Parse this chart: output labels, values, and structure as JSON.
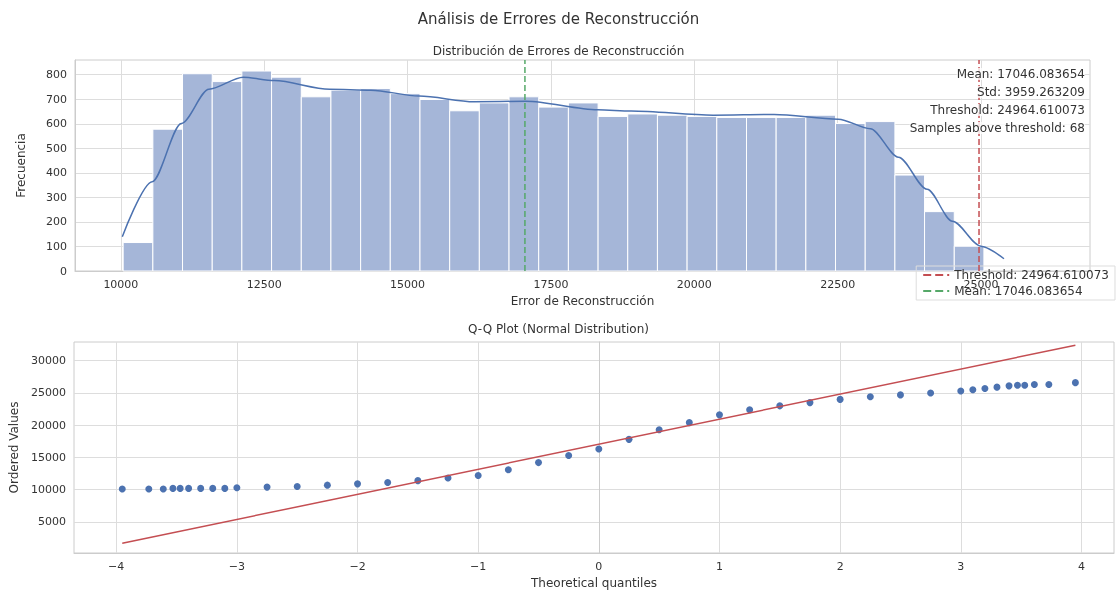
{
  "chart_data": [
    {
      "type": "histogram",
      "title": "Análisis de Errores de Reconstrucción",
      "subtitle": "Distribución de Errores de Reconstrucción",
      "xlabel": "Error de Reconstrucción",
      "ylabel": "Frecuencia",
      "series": [
        {
          "color": "#a5b6d8",
          "bins": [
            10040,
            10558,
            11075,
            11593,
            12110,
            12628,
            13146,
            13663,
            14181,
            14698,
            15216,
            15734,
            16251,
            16769,
            17286,
            17804,
            18322,
            18839,
            19357,
            19874,
            20392,
            20910,
            21427,
            21945,
            22462,
            22980,
            23498,
            24015,
            24533,
            25050
          ],
          "values": [
            116,
            578,
            804,
            772,
            815,
            790,
            710,
            737,
            744,
            723,
            699,
            653,
            685,
            710,
            668,
            685,
            630,
            640,
            635,
            630,
            626,
            626,
            626,
            635,
            601,
            609,
            391,
            242,
            101
          ]
        },
        {
          "type": "line",
          "color": "#4c72b0",
          "x": [
            10025,
            10545,
            11055,
            11535,
            12135,
            12675,
            13640,
            14360,
            15200,
            16160,
            17060,
            18320,
            18900,
            20330,
            21390,
            22510,
            23070,
            23560,
            24060,
            24500,
            25000,
            25400
          ],
          "values": [
            140,
            364,
            601,
            741,
            790,
            776,
            741,
            737,
            713,
            690,
            692,
            657,
            652,
            635,
            638,
            619,
            580,
            464,
            333,
            203,
            101,
            50
          ]
        }
      ],
      "xlim": [
        9200,
        26900
      ],
      "ylim": [
        0,
        860
      ],
      "xticks": [
        10000,
        12500,
        15000,
        17500,
        20000,
        22500,
        25000
      ],
      "yticks": [
        0,
        100,
        200,
        300,
        400,
        500,
        600,
        700,
        800
      ],
      "grid": true,
      "legend": "bottom right",
      "ref_lines": [
        {
          "axis": "x",
          "value": 24964.610073,
          "label": "Threshold: 24964.610073",
          "color": "#c44e52",
          "line_style": "dashed"
        },
        {
          "axis": "x",
          "value": 17046.083654,
          "label": "Mean: 17046.083654",
          "color": "#55a868",
          "line_style": "dashed"
        }
      ],
      "annotations": [
        "Mean: 17046.083654",
        "Std: 3959.263209",
        "Threshold: 24964.610073",
        "Samples above threshold: 68"
      ]
    },
    {
      "type": "scatter",
      "title": "Q-Q Plot (Normal Distribution)",
      "xlabel": "Theoretical quantiles",
      "ylabel": "Ordered Values",
      "marker": "circle",
      "series": [
        {
          "color": "#4c72b0",
          "x": [
            -3.95,
            -3.73,
            -3.61,
            -3.53,
            -3.47,
            -3.4,
            -3.3,
            -3.2,
            -3.1,
            -3.0,
            -2.75,
            -2.5,
            -2.25,
            -2.0,
            -1.75,
            -1.5,
            -1.25,
            -1.0,
            -0.75,
            -0.5,
            -0.25,
            0,
            0.25,
            0.5,
            0.75,
            1.0,
            1.25,
            1.5,
            1.75,
            2.0,
            2.25,
            2.5,
            2.75,
            3.0,
            3.1,
            3.2,
            3.3,
            3.4,
            3.47,
            3.53,
            3.61,
            3.73,
            3.95
          ],
          "values": [
            10100,
            10100,
            10100,
            10200,
            10200,
            10200,
            10200,
            10200,
            10200,
            10300,
            10400,
            10500,
            10700,
            10900,
            11100,
            11400,
            11800,
            12200,
            13100,
            14200,
            15300,
            16300,
            17800,
            19300,
            20400,
            21600,
            22400,
            23000,
            23500,
            24000,
            24400,
            24700,
            25000,
            25300,
            25500,
            25700,
            25900,
            26100,
            26200,
            26200,
            26300,
            26300,
            26600
          ]
        },
        {
          "type": "line",
          "marker": "none",
          "color": "#c44e52",
          "x": [
            -3.95,
            3.95
          ],
          "values": [
            1700,
            32400
          ]
        }
      ],
      "xlim": [
        -4.35,
        4.27
      ],
      "ylim": [
        180,
        32900
      ],
      "xticks": [
        -4,
        -3,
        -2,
        -1,
        0,
        1,
        2,
        3,
        4
      ],
      "yticks": [
        5000,
        10000,
        15000,
        20000,
        25000,
        30000
      ],
      "grid": true
    }
  ]
}
